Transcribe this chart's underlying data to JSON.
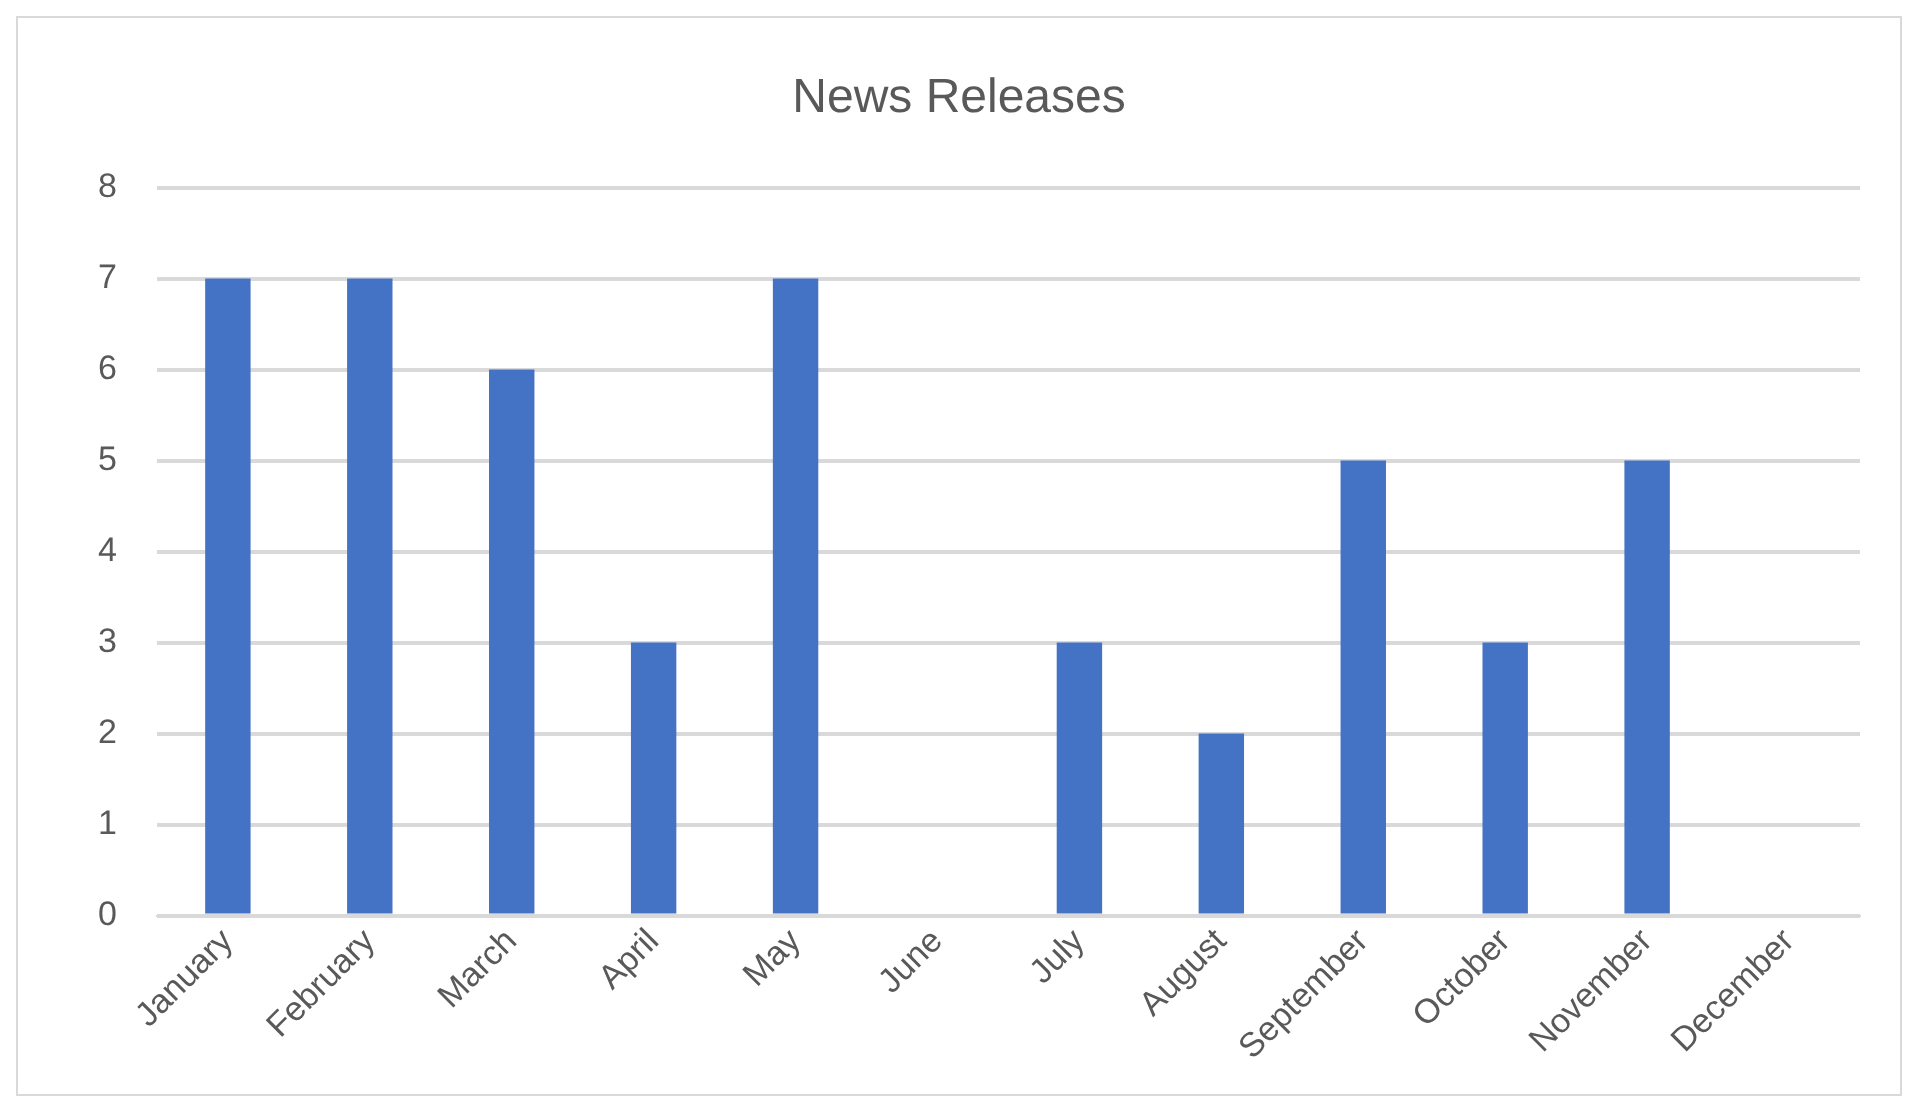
{
  "chart_data": {
    "type": "bar",
    "title": "News Releases",
    "categories": [
      "January",
      "February",
      "March",
      "April",
      "May",
      "June",
      "July",
      "August",
      "September",
      "October",
      "November",
      "December"
    ],
    "values": [
      7,
      7,
      6,
      3,
      7,
      0,
      3,
      2,
      5,
      3,
      5,
      0
    ],
    "color": "#4472c4",
    "ylim": [
      0,
      8
    ],
    "yticks": [
      0,
      1,
      2,
      3,
      4,
      5,
      6,
      7,
      8
    ],
    "grid": "y",
    "legend": false
  }
}
